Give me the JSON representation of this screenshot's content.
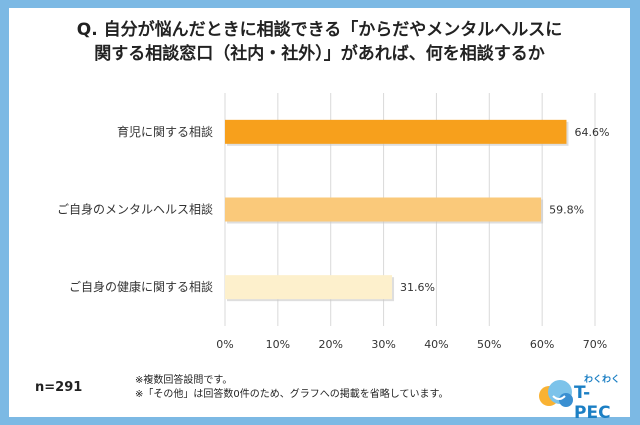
{
  "title_line1": "Q. 自分が悩んだときに相談できる「からだやメンタルヘルスに",
  "title_line2": "関する相談窓口（社内・社外）」があれば、何を相談するか",
  "chart_data": {
    "type": "bar",
    "orientation": "horizontal",
    "categories": [
      "育児に関する相談",
      "ご自身のメンタルヘルス相談",
      "ご自身の健康に関する相談"
    ],
    "values": [
      64.6,
      59.8,
      31.6
    ],
    "value_labels": [
      "64.6%",
      "59.8%",
      "31.6%"
    ],
    "colors": [
      "#f7a01c",
      "#fac97a",
      "#fdf0cc"
    ],
    "xlim": [
      0,
      70
    ],
    "x_ticks": [
      0,
      10,
      20,
      30,
      40,
      50,
      60,
      70
    ],
    "x_tick_labels": [
      "0%",
      "10%",
      "20%",
      "30%",
      "40%",
      "50%",
      "60%",
      "70%"
    ],
    "grid": true
  },
  "sample_size": "n=291",
  "notes": [
    "※複数回答設問です。",
    "※「その他」は回答数0件のため、グラフへの掲載を省略しています。"
  ],
  "logo": {
    "small_text": "わくわく",
    "main_text": "T-PEC",
    "icon": "smiling-cloud-icon"
  }
}
